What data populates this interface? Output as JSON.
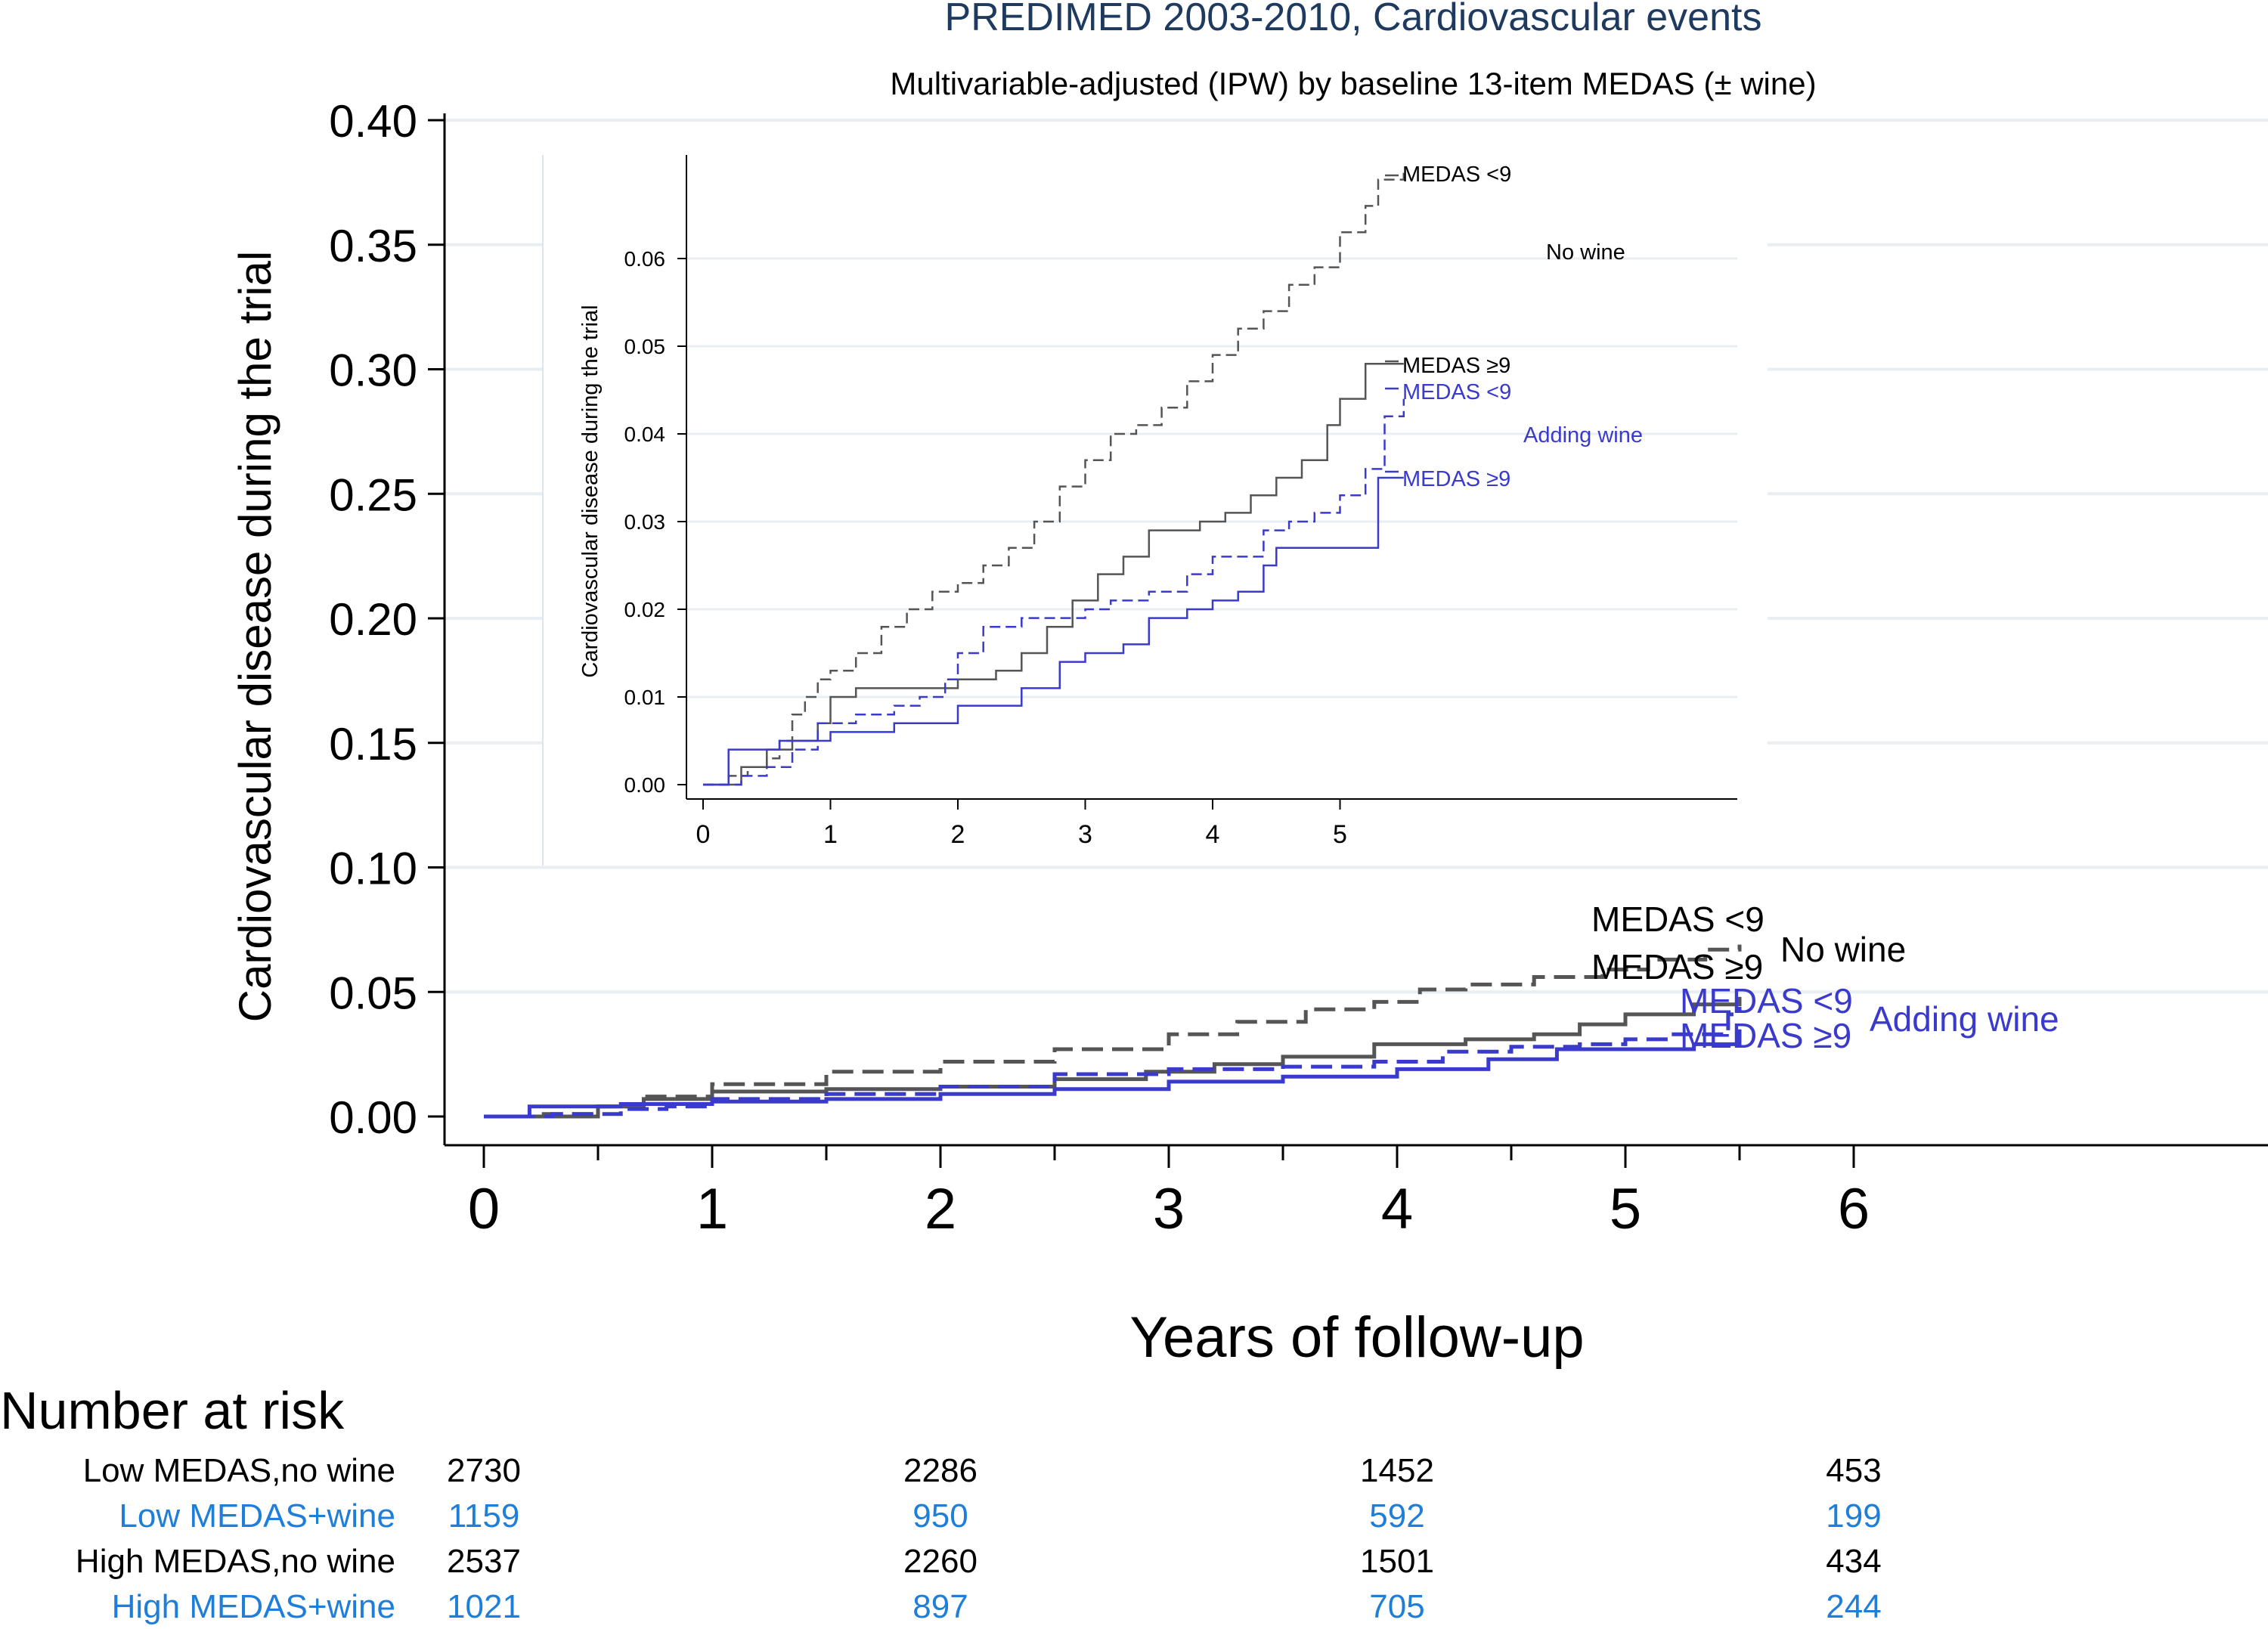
{
  "chart_data": [
    {
      "type": "line",
      "title": "PREDIMED 2003-2010, Cardiovascular events",
      "subtitle": "Multivariable-adjusted (IPW) by baseline 13-item MEDAS (± wine)",
      "xlabel": "Years of follow-up",
      "ylabel": "Cardiovascular disease during the trial",
      "xlim": [
        0,
        6
      ],
      "ylim": [
        0,
        0.4
      ],
      "xticks": [
        "0",
        "1",
        "2",
        "3",
        "4",
        "5",
        "6"
      ],
      "yticks": [
        "0.00",
        "0.05",
        "0.10",
        "0.15",
        "0.20",
        "0.25",
        "0.30",
        "0.35",
        "0.40"
      ],
      "xtick_values": [
        0,
        1,
        2,
        3,
        4,
        5,
        6
      ],
      "ytick_values": [
        0,
        0.05,
        0.1,
        0.15,
        0.2,
        0.25,
        0.3,
        0.35,
        0.4
      ],
      "grid": true,
      "series": [
        {
          "name": "MEDAS <9",
          "group": "No wine",
          "color": "#555555",
          "dash": "dashed",
          "x": [
            0,
            0.25,
            0.5,
            0.7,
            1.0,
            1.5,
            2.0,
            2.5,
            3.0,
            3.3,
            3.6,
            3.9,
            4.1,
            4.3,
            4.6,
            4.9,
            5.1,
            5.35,
            5.5
          ],
          "y": [
            0,
            0.001,
            0.004,
            0.008,
            0.013,
            0.018,
            0.022,
            0.027,
            0.033,
            0.038,
            0.043,
            0.046,
            0.051,
            0.053,
            0.056,
            0.059,
            0.063,
            0.067,
            0.069
          ]
        },
        {
          "name": "MEDAS ≥9",
          "group": "No wine",
          "color": "#555555",
          "dash": "solid",
          "x": [
            0,
            0.5,
            0.7,
            1.0,
            1.5,
            2.0,
            2.5,
            2.9,
            3.2,
            3.5,
            3.9,
            4.3,
            4.6,
            4.8,
            5.0,
            5.3,
            5.5
          ],
          "y": [
            0,
            0.004,
            0.007,
            0.01,
            0.011,
            0.012,
            0.015,
            0.018,
            0.021,
            0.024,
            0.029,
            0.031,
            0.033,
            0.037,
            0.041,
            0.045,
            0.048
          ]
        },
        {
          "name": "MEDAS <9",
          "group": "Adding wine",
          "color": "#3a3acc",
          "dash": "dashed",
          "x": [
            0,
            0.3,
            0.6,
            0.8,
            1.0,
            1.5,
            2.0,
            2.5,
            3.0,
            3.5,
            3.9,
            4.2,
            4.5,
            4.8,
            5.0,
            5.2,
            5.45,
            5.5
          ],
          "y": [
            0,
            0.001,
            0.003,
            0.004,
            0.007,
            0.009,
            0.012,
            0.017,
            0.019,
            0.02,
            0.022,
            0.026,
            0.028,
            0.029,
            0.031,
            0.033,
            0.041,
            0.044
          ]
        },
        {
          "name": "MEDAS ≥9",
          "group": "Adding wine",
          "color": "#3a3acc",
          "dash": "solid",
          "x": [
            0,
            0.2,
            0.6,
            1.0,
            1.5,
            2.0,
            2.5,
            3.0,
            3.5,
            4.0,
            4.4,
            4.7,
            5.0,
            5.3,
            5.5
          ],
          "y": [
            0,
            0.004,
            0.005,
            0.006,
            0.007,
            0.009,
            0.011,
            0.014,
            0.016,
            0.019,
            0.023,
            0.027,
            0.027,
            0.029,
            0.035
          ]
        }
      ],
      "annotations": {
        "nowine_lt9": "MEDAS <9",
        "nowine_ge9": "MEDAS ≥9",
        "wine_lt9": "MEDAS <9",
        "wine_ge9": "MEDAS ≥9",
        "group_nowine": "No wine",
        "group_wine": "Adding wine"
      }
    },
    {
      "type": "line",
      "ylabel": "Cardiovascular disease during the trial",
      "xlim": [
        0,
        8.2
      ],
      "ylim": [
        0,
        0.07
      ],
      "xticks": [
        "0",
        "1",
        "2",
        "3",
        "4",
        "5"
      ],
      "yticks": [
        "0.00",
        "0.01",
        "0.02",
        "0.03",
        "0.04",
        "0.05",
        "0.06"
      ],
      "xtick_values": [
        0,
        1,
        2,
        3,
        4,
        5
      ],
      "ytick_values": [
        0,
        0.01,
        0.02,
        0.03,
        0.04,
        0.05,
        0.06
      ],
      "grid": true,
      "series": [
        {
          "name": "MEDAS <9",
          "group": "No wine",
          "color": "#555555",
          "dash": "dashed",
          "x": [
            0,
            0.2,
            0.35,
            0.5,
            0.6,
            0.7,
            0.8,
            0.9,
            1.0,
            1.2,
            1.4,
            1.6,
            1.8,
            2.0,
            2.2,
            2.4,
            2.6,
            2.8,
            3.0,
            3.2,
            3.4,
            3.6,
            3.8,
            4.0,
            4.2,
            4.4,
            4.6,
            4.8,
            5.0,
            5.2,
            5.3,
            5.5
          ],
          "y": [
            0,
            0.001,
            0.002,
            0.003,
            0.005,
            0.008,
            0.01,
            0.012,
            0.013,
            0.015,
            0.018,
            0.02,
            0.022,
            0.023,
            0.025,
            0.027,
            0.03,
            0.034,
            0.037,
            0.04,
            0.041,
            0.043,
            0.046,
            0.049,
            0.052,
            0.054,
            0.057,
            0.059,
            0.063,
            0.066,
            0.069,
            0.07
          ]
        },
        {
          "name": "MEDAS ≥9",
          "group": "No wine",
          "color": "#555555",
          "dash": "solid",
          "x": [
            0,
            0.3,
            0.5,
            0.7,
            0.9,
            1.0,
            1.2,
            1.5,
            1.8,
            2.0,
            2.3,
            2.5,
            2.7,
            2.9,
            3.1,
            3.3,
            3.5,
            3.7,
            3.9,
            4.1,
            4.3,
            4.5,
            4.7,
            4.9,
            5.0,
            5.2,
            5.5
          ],
          "y": [
            0,
            0.002,
            0.004,
            0.005,
            0.007,
            0.01,
            0.011,
            0.011,
            0.011,
            0.012,
            0.013,
            0.015,
            0.018,
            0.021,
            0.024,
            0.026,
            0.029,
            0.029,
            0.03,
            0.031,
            0.033,
            0.035,
            0.037,
            0.041,
            0.044,
            0.048,
            0.048
          ]
        },
        {
          "name": "MEDAS <9",
          "group": "Adding wine",
          "color": "#3a3acc",
          "dash": "dashed",
          "x": [
            0,
            0.3,
            0.5,
            0.7,
            0.9,
            1.2,
            1.5,
            1.7,
            1.9,
            2.0,
            2.2,
            2.5,
            2.8,
            3.0,
            3.2,
            3.5,
            3.8,
            4.0,
            4.2,
            4.4,
            4.6,
            4.8,
            5.0,
            5.2,
            5.35,
            5.5
          ],
          "y": [
            0,
            0.001,
            0.002,
            0.004,
            0.007,
            0.008,
            0.009,
            0.01,
            0.012,
            0.015,
            0.018,
            0.019,
            0.019,
            0.02,
            0.021,
            0.022,
            0.024,
            0.026,
            0.026,
            0.029,
            0.03,
            0.031,
            0.033,
            0.036,
            0.042,
            0.044
          ]
        },
        {
          "name": "MEDAS ≥9",
          "group": "Adding wine",
          "color": "#3a3acc",
          "dash": "solid",
          "x": [
            0,
            0.2,
            0.4,
            0.6,
            0.8,
            1.0,
            1.5,
            2.0,
            2.5,
            2.8,
            3.0,
            3.3,
            3.5,
            3.8,
            4.0,
            4.2,
            4.4,
            4.5,
            4.7,
            4.9,
            5.1,
            5.3,
            5.5
          ],
          "y": [
            0,
            0.004,
            0.004,
            0.005,
            0.005,
            0.006,
            0.007,
            0.009,
            0.011,
            0.014,
            0.015,
            0.016,
            0.019,
            0.02,
            0.021,
            0.022,
            0.025,
            0.027,
            0.027,
            0.027,
            0.027,
            0.035,
            0.035
          ]
        }
      ],
      "annotations": {
        "nowine_lt9": "MEDAS <9",
        "nowine_ge9": "MEDAS ≥9",
        "wine_lt9": "MEDAS <9",
        "wine_ge9": "MEDAS ≥9",
        "group_nowine": "No wine",
        "group_wine": "Adding wine"
      }
    }
  ],
  "risk_table": {
    "heading": "Number at risk",
    "rows": [
      {
        "label": "Low MEDAS,no wine",
        "color": "#000000",
        "values": [
          "2730",
          "2286",
          "1452",
          "453"
        ]
      },
      {
        "label": "Low MEDAS+wine",
        "color": "#1f7fd8",
        "values": [
          "1159",
          "950",
          "592",
          "199"
        ]
      },
      {
        "label": "High MEDAS,no wine",
        "color": "#000000",
        "values": [
          "2537",
          "2260",
          "1501",
          "434"
        ]
      },
      {
        "label": "High MEDAS+wine",
        "color": "#1f7fd8",
        "values": [
          "1021",
          "897",
          "705",
          "244"
        ]
      }
    ],
    "at_years": [
      0,
      2,
      4,
      6
    ]
  },
  "colors": {
    "title": "#1f3a5f",
    "nowine": "#555555",
    "wine": "#3a3acc",
    "risk_wine": "#1f7fd8",
    "grid": "#e8eef2"
  }
}
